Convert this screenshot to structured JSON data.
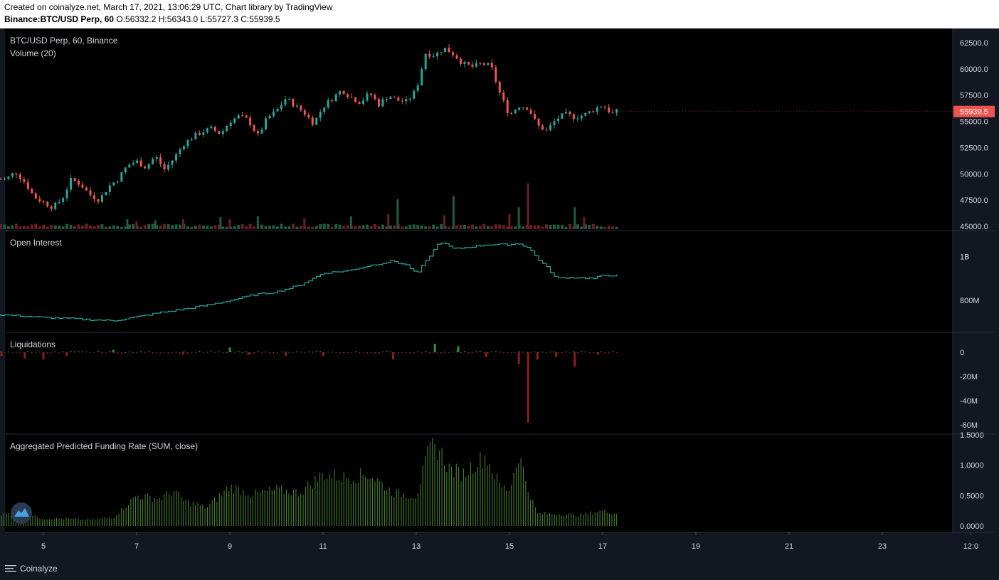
{
  "header": {
    "line1": "Created on coinalyze.net, March 17, 2021, 13:06:29 UTC, Chart library by TradingView",
    "symbol": "Binance:BTC/USD Perp, 60",
    "ohlc": "O:56332.2 H:56343.0 L:55727.3 C:55939.5"
  },
  "footer": {
    "brand": "Coinalyze"
  },
  "colors": {
    "up": "#26a69a",
    "down": "#ef5350",
    "vol_up": "#1e5c43",
    "vol_down": "#6b1f24",
    "oi": "#26a69a",
    "liq_up": "#3d8a3d",
    "liq_down": "#8b1e1e",
    "funding": "#4e8a2e",
    "price_label": "#ef5350"
  },
  "chart_data": [
    {
      "type": "candlestick",
      "pane": "price",
      "title": "BTC/USD Perp, 60, Binance",
      "subtitle": "Volume (20)",
      "x_ticks": [
        "5",
        "7",
        "9",
        "11",
        "13",
        "15",
        "17",
        "19",
        "21",
        "23",
        "12:0"
      ],
      "y_ticks": [
        "62500.0",
        "60000.0",
        "57500.0",
        "55000.0",
        "52500.0",
        "50000.0",
        "47500.0",
        "45000.0"
      ],
      "ylim": [
        45000,
        63000
      ],
      "last_price": "55939.5",
      "series": [
        {
          "name": "close",
          "x": [
            4.2,
            4.4,
            4.6,
            4.8,
            5.0,
            5.2,
            5.4,
            5.6,
            5.8,
            6.0,
            6.2,
            6.4,
            6.6,
            6.8,
            7.0,
            7.2,
            7.4,
            7.6,
            7.8,
            8.0,
            8.2,
            8.4,
            8.6,
            8.8,
            9.0,
            9.2,
            9.4,
            9.6,
            9.8,
            10.0,
            10.2,
            10.4,
            10.6,
            10.8,
            11.0,
            11.2,
            11.4,
            11.6,
            11.8,
            12.0,
            12.2,
            12.4,
            12.6,
            12.8,
            13.0,
            13.2,
            13.4,
            13.6,
            13.8,
            14.0,
            14.2,
            14.4,
            14.6,
            14.8,
            15.0,
            15.2,
            15.4,
            15.6,
            15.8,
            16.0,
            16.2,
            16.4,
            16.6,
            16.8,
            17.0,
            17.2,
            17.3
          ],
          "values": [
            49500,
            50200,
            49200,
            47800,
            47300,
            46800,
            47600,
            49500,
            49000,
            48000,
            47500,
            48800,
            49500,
            50800,
            51200,
            50600,
            51700,
            50400,
            51500,
            52800,
            53500,
            54000,
            54300,
            53800,
            55000,
            55500,
            55100,
            53600,
            55300,
            56000,
            57200,
            56500,
            55800,
            54800,
            56400,
            57200,
            58000,
            57300,
            56800,
            57700,
            56600,
            57500,
            57000,
            56900,
            58000,
            61500,
            61300,
            62000,
            61400,
            60500,
            60200,
            60500,
            60300,
            57600,
            55600,
            56500,
            56300,
            54600,
            54100,
            55200,
            55700,
            55400,
            55600,
            56100,
            56600,
            55700,
            55939.5
          ]
        }
      ],
      "volume": {
        "x": [
          6.8,
          7.0,
          7.4,
          8.0,
          8.8,
          9.0,
          9.6,
          10.6,
          11.6,
          12.4,
          12.6,
          13.6,
          13.8,
          15.0,
          15.2,
          15.4,
          16.4,
          16.6
        ],
        "values": [
          1.0,
          0.8,
          0.9,
          1.0,
          1.2,
          1.0,
          1.3,
          1.1,
          1.3,
          1.5,
          3.0,
          1.4,
          3.3,
          1.5,
          2.2,
          4.6,
          2.2,
          1.2
        ]
      }
    },
    {
      "type": "line",
      "pane": "open_interest",
      "title": "Open Interest",
      "y_ticks": [
        "1B",
        "800M"
      ],
      "series": [
        {
          "name": "Open Interest",
          "x": [
            4.0,
            4.5,
            5.0,
            5.5,
            6.0,
            6.5,
            7.0,
            7.5,
            8.0,
            8.5,
            9.0,
            9.5,
            10.0,
            10.5,
            11.0,
            11.5,
            12.0,
            12.5,
            12.8,
            13.0,
            13.2,
            13.5,
            13.8,
            14.0,
            14.5,
            15.0,
            15.2,
            15.4,
            15.6,
            15.8,
            16.0,
            16.2,
            16.5,
            16.8,
            17.0,
            17.3
          ],
          "values": [
            735,
            730,
            722,
            718,
            712,
            708,
            725,
            745,
            760,
            778,
            800,
            825,
            840,
            870,
            925,
            935,
            960,
            980,
            960,
            920,
            980,
            1070,
            1035,
            1040,
            1055,
            1055,
            1060,
            1040,
            990,
            950,
            900,
            905,
            905,
            900,
            915,
            915
          ]
        }
      ]
    },
    {
      "type": "bar",
      "pane": "liquidations",
      "title": "Liquidations",
      "y_ticks": [
        "0",
        "-20M",
        "-40M",
        "-60M"
      ],
      "series": [
        {
          "name": "Liquidations",
          "x": [
            4.1,
            4.6,
            5.0,
            5.5,
            6.5,
            8.0,
            9.0,
            9.4,
            10.2,
            11.0,
            12.5,
            13.4,
            13.9,
            14.5,
            15.2,
            15.4,
            15.6,
            16.0,
            16.4,
            16.9
          ],
          "values": [
            -3,
            -5,
            -6,
            -3,
            2,
            -2,
            4,
            -2,
            -3,
            -3,
            -6,
            7,
            5,
            -4,
            -10,
            -58,
            -6,
            -4,
            -12,
            -2
          ]
        }
      ]
    },
    {
      "type": "bar",
      "pane": "funding",
      "title": "Aggregated Predicted Funding Rate (SUM, close)",
      "y_ticks": [
        "0.0000",
        "0.5000",
        "1.0000",
        "1.5000"
      ],
      "series": [
        {
          "name": "Aggregated Predicted Funding Rate",
          "x": [
            4.0,
            4.5,
            5.0,
            5.5,
            6.0,
            6.5,
            7.0,
            7.2,
            7.5,
            7.8,
            8.0,
            8.5,
            9.0,
            9.5,
            10.0,
            10.5,
            11.0,
            11.5,
            12.0,
            12.5,
            13.0,
            13.3,
            13.5,
            13.7,
            14.0,
            14.3,
            14.5,
            14.8,
            15.0,
            15.2,
            15.4,
            15.6,
            16.0,
            16.5,
            17.0,
            17.3
          ],
          "values": [
            0.18,
            0.22,
            0.12,
            0.12,
            0.1,
            0.14,
            0.5,
            0.48,
            0.45,
            0.58,
            0.42,
            0.3,
            0.65,
            0.52,
            0.6,
            0.55,
            0.85,
            0.8,
            0.85,
            0.55,
            0.5,
            1.3,
            1.25,
            0.95,
            0.85,
            1.05,
            1.15,
            0.65,
            0.6,
            1.2,
            0.6,
            0.2,
            0.2,
            0.18,
            0.25,
            0.2
          ]
        }
      ]
    }
  ]
}
